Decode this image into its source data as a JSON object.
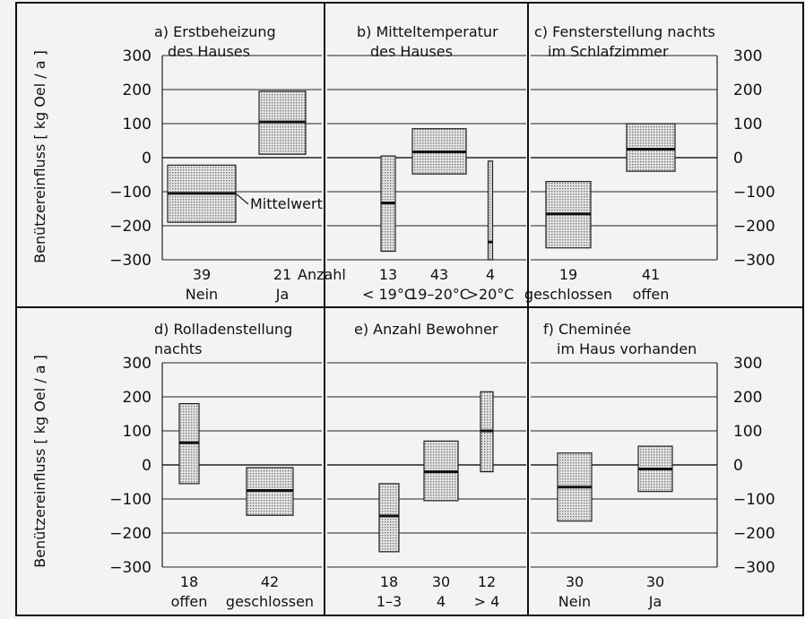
{
  "ylabel": "Benützereinfluss [ kg Oel / a ]",
  "y_ticks": [
    300,
    200,
    100,
    0,
    -100,
    -200,
    -300
  ],
  "annotation": "Mittelwert",
  "chart_data": [
    {
      "type": "range",
      "title": "a) Erstbeheizung",
      "subtitle": "des Hauses",
      "ylim": [
        -300,
        300
      ],
      "groups": [
        {
          "count": "39",
          "label": "Nein",
          "min": -190,
          "max": -22,
          "mean": -105
        },
        {
          "count": "21",
          "label": "Ja",
          "min": 10,
          "max": 195,
          "mean": 105
        }
      ],
      "count_note": "Anzahl"
    },
    {
      "type": "range",
      "title": "b) Mitteltemperatur",
      "subtitle": "des Hauses",
      "ylim": [
        -300,
        300
      ],
      "groups": [
        {
          "count": "13",
          "label": "< 19°C",
          "min": -275,
          "max": 5,
          "mean": -133
        },
        {
          "count": "43",
          "label": "19–20°C",
          "min": -48,
          "max": 85,
          "mean": 17
        },
        {
          "count": "4",
          "label": ">20°C",
          "min": -300,
          "max": -10,
          "mean": -248
        }
      ]
    },
    {
      "type": "range",
      "title": "c) Fensterstellung nachts",
      "subtitle": "im Schlafzimmer",
      "ylim": [
        -300,
        300
      ],
      "groups": [
        {
          "count": "19",
          "label": "geschlossen",
          "min": -265,
          "max": -70,
          "mean": -165
        },
        {
          "count": "41",
          "label": "offen",
          "min": -40,
          "max": 100,
          "mean": 25
        }
      ]
    },
    {
      "type": "range",
      "title": "d) Rolladenstellung",
      "subtitle": "nachts",
      "ylim": [
        -300,
        300
      ],
      "groups": [
        {
          "count": "18",
          "label": "offen",
          "min": -55,
          "max": 180,
          "mean": 65
        },
        {
          "count": "42",
          "label": "geschlossen",
          "min": -148,
          "max": -8,
          "mean": -75
        }
      ]
    },
    {
      "type": "range",
      "title": "e) Anzahl  Bewohner",
      "subtitle": "",
      "ylim": [
        -300,
        300
      ],
      "groups": [
        {
          "count": "18",
          "label": "1–3",
          "min": -255,
          "max": -55,
          "mean": -150
        },
        {
          "count": "30",
          "label": "4",
          "min": -105,
          "max": 70,
          "mean": -20
        },
        {
          "count": "12",
          "label": "> 4",
          "min": -20,
          "max": 215,
          "mean": 100
        }
      ]
    },
    {
      "type": "range",
      "title": "f) Cheminée",
      "subtitle": "im Haus vorhanden",
      "ylim": [
        -300,
        300
      ],
      "groups": [
        {
          "count": "30",
          "label": "Nein",
          "min": -165,
          "max": 35,
          "mean": -65
        },
        {
          "count": "30",
          "label": "Ja",
          "min": -78,
          "max": 55,
          "mean": -12
        }
      ]
    }
  ]
}
